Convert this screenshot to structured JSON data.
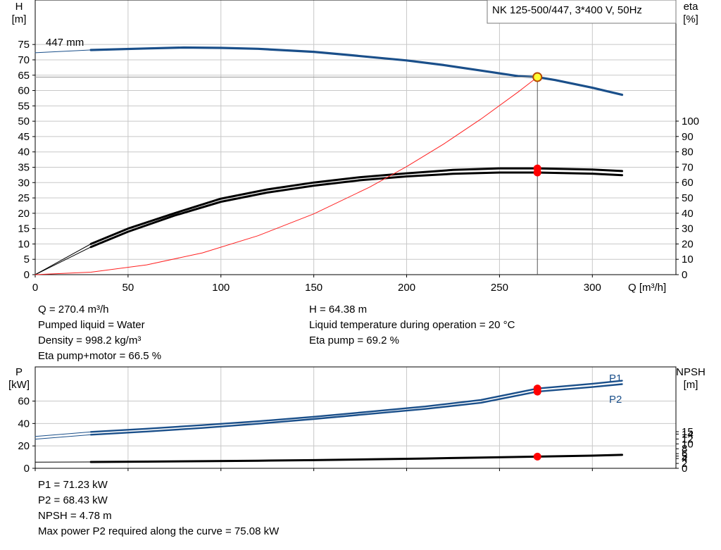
{
  "colors": {
    "head_curve": "#1a4f8a",
    "power_curve": "#1a4f8a",
    "power_label": "#1a4f8a",
    "eta_curve": "#000000",
    "npsh_curve": "#000000",
    "system_curve": "#ff2020",
    "marker_red": "#ff0000",
    "marker_yellow": "#ffff33",
    "marker_outline": "#b84a00",
    "grid": "#c8c8c8",
    "frame": "#000000"
  },
  "chart_data": [
    {
      "type": "line",
      "id": "head-eta-chart",
      "title": "NK 125-500/447, 3*400 V, 50Hz",
      "curve_label": "447 mm",
      "xlabel": "Q [m³/h]",
      "ylabel_left": [
        "H",
        "[m]"
      ],
      "ylabel_right": [
        "eta",
        "[%]"
      ],
      "x_ticks": [
        0,
        50,
        100,
        150,
        200,
        250,
        300
      ],
      "xlim": [
        0,
        345
      ],
      "y_left_ticks": [
        0,
        5,
        10,
        15,
        20,
        25,
        30,
        35,
        40,
        45,
        50,
        55,
        60,
        65,
        70,
        75
      ],
      "y_left_lim": [
        0,
        89.5
      ],
      "y_right_ticks": [
        0,
        10,
        20,
        30,
        40,
        50,
        60,
        70,
        80,
        90,
        100
      ],
      "y_right_lim": [
        0,
        178.9
      ],
      "grid": true,
      "operating_point": {
        "Q": 270.4,
        "H": 64.38,
        "eta_pump": 69.2,
        "eta_total": 66.5
      },
      "series": [
        {
          "id": "head",
          "axis": "left",
          "style": "thick",
          "values": [
            [
              30,
              73.2
            ],
            [
              60,
              73.7
            ],
            [
              80,
              74.0
            ],
            [
              100,
              73.9
            ],
            [
              120,
              73.6
            ],
            [
              150,
              72.6
            ],
            [
              170,
              71.5
            ],
            [
              200,
              69.8
            ],
            [
              220,
              68.3
            ],
            [
              240,
              66.5
            ],
            [
              260,
              64.7
            ],
            [
              270.4,
              64.38
            ],
            [
              280,
              63.4
            ],
            [
              300,
              60.9
            ],
            [
              316,
              58.6
            ]
          ]
        },
        {
          "id": "head-extension",
          "axis": "left",
          "style": "thin",
          "values": [
            [
              0,
              72.3
            ],
            [
              30,
              73.2
            ]
          ]
        },
        {
          "name": "",
          "id": "eta-pump",
          "axis": "right",
          "style": "thick-black",
          "values": [
            [
              30,
              20
            ],
            [
              50,
              30
            ],
            [
              75,
              40
            ],
            [
              100,
              49.5
            ],
            [
              125,
              55.5
            ],
            [
              150,
              60
            ],
            [
              175,
              63.5
            ],
            [
              200,
              66
            ],
            [
              225,
              68.2
            ],
            [
              250,
              69.2
            ],
            [
              270.4,
              69.2
            ],
            [
              300,
              68.5
            ],
            [
              316,
              67.5
            ]
          ]
        },
        {
          "name": "",
          "id": "eta-total",
          "axis": "right",
          "style": "thick-black",
          "values": [
            [
              30,
              18
            ],
            [
              50,
              28
            ],
            [
              75,
              38.5
            ],
            [
              100,
              47.5
            ],
            [
              125,
              53.5
            ],
            [
              150,
              58
            ],
            [
              175,
              61.5
            ],
            [
              200,
              64
            ],
            [
              225,
              65.7
            ],
            [
              250,
              66.5
            ],
            [
              270.4,
              66.5
            ],
            [
              300,
              65.8
            ],
            [
              316,
              64.8
            ]
          ]
        },
        {
          "id": "eta-extension",
          "axis": "right",
          "style": "thin-black",
          "values": [
            [
              0,
              0
            ],
            [
              30,
              18
            ]
          ]
        },
        {
          "id": "eta-extension-2",
          "axis": "right",
          "style": "thin-black",
          "values": [
            [
              0,
              0
            ],
            [
              30,
              20
            ]
          ]
        },
        {
          "id": "system-curve",
          "axis": "left",
          "style": "thin-red",
          "values": [
            [
              0,
              0
            ],
            [
              30,
              0.8
            ],
            [
              60,
              3.2
            ],
            [
              90,
              7.1
            ],
            [
              120,
              12.7
            ],
            [
              150,
              19.8
            ],
            [
              180,
              28.5
            ],
            [
              200,
              35.2
            ],
            [
              220,
              42.6
            ],
            [
              240,
              50.7
            ],
            [
              260,
              59.5
            ],
            [
              270.4,
              64.38
            ]
          ]
        }
      ],
      "markers": [
        {
          "id": "op-point-head",
          "axis": "left",
          "x": 270.4,
          "y": 64.38,
          "fill": "yellow"
        },
        {
          "id": "op-point-eta-pump",
          "axis": "right",
          "x": 270.4,
          "y": 69.2,
          "fill": "red"
        },
        {
          "id": "op-point-eta-total",
          "axis": "right",
          "x": 270.4,
          "y": 66.5,
          "fill": "red"
        }
      ]
    },
    {
      "type": "line",
      "id": "power-npsh-chart",
      "xlim": [
        0,
        345
      ],
      "x_ticks": [
        0,
        50,
        100,
        150,
        200,
        250,
        300
      ],
      "ylabel_left": [
        "P",
        "[kW]"
      ],
      "ylabel_right": [
        "NPSH",
        "[m]"
      ],
      "y_left_ticks": [
        0,
        20,
        40,
        60
      ],
      "y_left_lim": [
        0,
        90.5
      ],
      "y_right_ticks": [
        0,
        2,
        4,
        5,
        6,
        8,
        10,
        12,
        14,
        15
      ],
      "y_right_lim": [
        0,
        41.5
      ],
      "grid": true,
      "series_labels": [
        "P1",
        "P2"
      ],
      "series": [
        {
          "name": "P1",
          "id": "p1",
          "axis": "left",
          "style": "thick-blue",
          "values": [
            [
              30,
              32.5
            ],
            [
              60,
              35.3
            ],
            [
              90,
              38.5
            ],
            [
              120,
              42
            ],
            [
              150,
              46
            ],
            [
              180,
              50.5
            ],
            [
              210,
              55.2
            ],
            [
              240,
              61
            ],
            [
              270.4,
              71.23
            ],
            [
              300,
              75.5
            ],
            [
              316,
              78.2
            ]
          ]
        },
        {
          "name": "P2",
          "id": "p2",
          "axis": "left",
          "style": "thick-blue",
          "values": [
            [
              30,
              30
            ],
            [
              60,
              32.8
            ],
            [
              90,
              36
            ],
            [
              120,
              39.8
            ],
            [
              150,
              44
            ],
            [
              180,
              48.5
            ],
            [
              210,
              53
            ],
            [
              240,
              58.5
            ],
            [
              270.4,
              68.43
            ],
            [
              300,
              72.5
            ],
            [
              316,
              75.08
            ]
          ]
        },
        {
          "id": "p1-extension",
          "axis": "left",
          "style": "thin-blue",
          "values": [
            [
              0,
              28.5
            ],
            [
              30,
              32.5
            ]
          ]
        },
        {
          "id": "p2-extension",
          "axis": "left",
          "style": "thin-blue",
          "values": [
            [
              0,
              26
            ],
            [
              30,
              30
            ]
          ]
        },
        {
          "name": "",
          "id": "npsh",
          "axis": "right",
          "style": "thick-black",
          "values": [
            [
              30,
              2.6
            ],
            [
              60,
              2.75
            ],
            [
              90,
              2.9
            ],
            [
              120,
              3.1
            ],
            [
              150,
              3.35
            ],
            [
              180,
              3.65
            ],
            [
              210,
              4.0
            ],
            [
              240,
              4.4
            ],
            [
              270.4,
              4.78
            ],
            [
              300,
              5.2
            ],
            [
              316,
              5.5
            ]
          ]
        },
        {
          "id": "npsh-extension",
          "axis": "right",
          "style": "thin-black",
          "values": [
            [
              0,
              2.5
            ],
            [
              30,
              2.6
            ]
          ]
        }
      ],
      "markers": [
        {
          "id": "op-point-p1",
          "axis": "left",
          "x": 270.4,
          "y": 71.23,
          "fill": "red"
        },
        {
          "id": "op-point-p2",
          "axis": "left",
          "x": 270.4,
          "y": 68.43,
          "fill": "red"
        },
        {
          "id": "op-point-npsh",
          "axis": "right",
          "x": 270.4,
          "y": 4.78,
          "fill": "red"
        }
      ]
    }
  ],
  "info_top": {
    "left": [
      "Q = 270.4 m³/h",
      "Pumped liquid = Water",
      "Density = 998.2 kg/m³",
      "Eta pump+motor = 66.5 %"
    ],
    "right": [
      "H = 64.38 m",
      "Liquid temperature during operation = 20 °C",
      "Eta pump = 69.2 %"
    ]
  },
  "info_bottom": [
    "P1 = 71.23 kW",
    "P2 = 68.43 kW",
    "NPSH = 4.78 m",
    "Max power P2 required along the curve = 75.08 kW"
  ]
}
